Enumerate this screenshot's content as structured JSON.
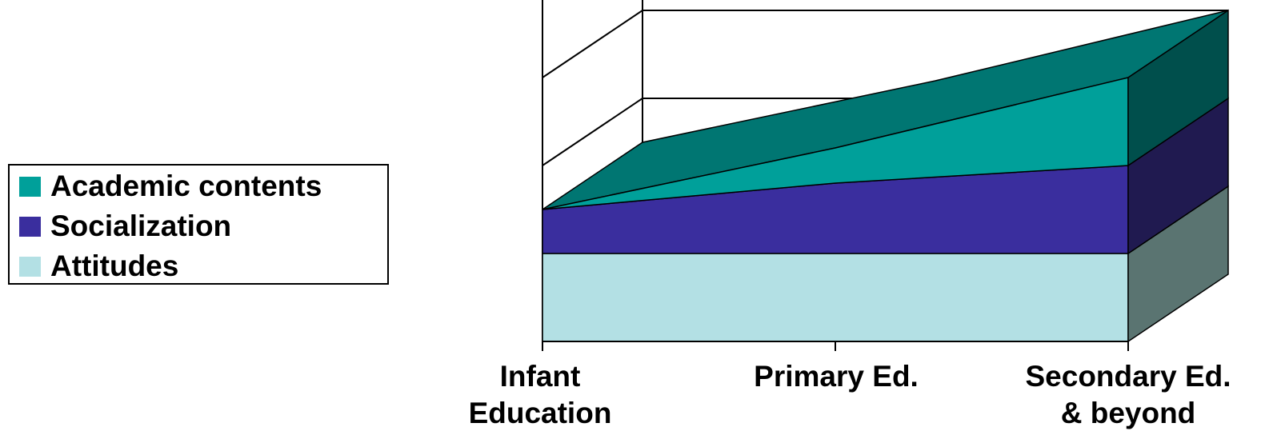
{
  "chart_data": {
    "type": "area",
    "style": "3d-stacked-area",
    "categories": [
      "Infant Education",
      "Primary Ed.",
      "Secondary Ed. & beyond"
    ],
    "category_lines": [
      [
        "Infant",
        "Education"
      ],
      [
        "Primary Ed."
      ],
      [
        "Secondary Ed.",
        "& beyond"
      ]
    ],
    "ylim": [
      0,
      4
    ],
    "grid": true,
    "legend_position": "left",
    "series": [
      {
        "name": "Attitudes",
        "values": [
          1,
          1,
          1
        ],
        "color": "#b3e0e4",
        "side_color": "#5a7471"
      },
      {
        "name": "Socialization",
        "values": [
          0.5,
          0.8,
          1
        ],
        "color": "#3a2e9e",
        "side_color": "#201a50"
      },
      {
        "name": "Academic contents",
        "values": [
          0,
          0.4,
          1
        ],
        "color": "#00a09a",
        "side_color": "#004f4c",
        "top_color": "#007672"
      }
    ]
  },
  "legend": {
    "items": [
      {
        "label": "Academic contents",
        "color": "#00a09a"
      },
      {
        "label": "Socialization",
        "color": "#3a2e9e"
      },
      {
        "label": "Attitudes",
        "color": "#b3e0e4"
      }
    ]
  }
}
